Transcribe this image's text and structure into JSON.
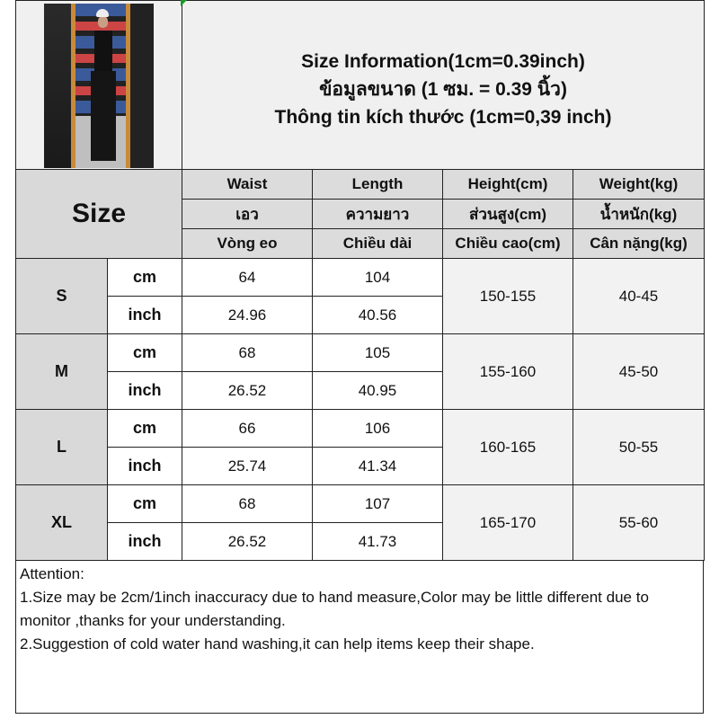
{
  "title": {
    "line1": "Size Information(1cm=0.39inch)",
    "line2": "ข้อมูลขนาด (1 ซม. = 0.39 นิ้ว)",
    "line3": "Thông tin kích thước (1cm=0,39 inch)"
  },
  "size_label": "Size",
  "headers": [
    [
      "Waist",
      "Length",
      "Height(cm)",
      "Weight(kg)"
    ],
    [
      "เอว",
      "ความยาว",
      "ส่วนสูง(cm)",
      "น้ำหนัก(kg)"
    ],
    [
      "Vòng eo",
      "Chiều dài",
      "Chiều cao(cm)",
      "Cân nặng(kg)"
    ]
  ],
  "units": {
    "cm": "cm",
    "inch": "inch"
  },
  "rows": [
    {
      "size": "S",
      "cm": {
        "waist": "64",
        "length": "104"
      },
      "inch": {
        "waist": "24.96",
        "length": "40.56"
      },
      "height": "150-155",
      "weight": "40-45"
    },
    {
      "size": "M",
      "cm": {
        "waist": "68",
        "length": "105"
      },
      "inch": {
        "waist": "26.52",
        "length": "40.95"
      },
      "height": "155-160",
      "weight": "45-50"
    },
    {
      "size": "L",
      "cm": {
        "waist": "66",
        "length": "106"
      },
      "inch": {
        "waist": "25.74",
        "length": "41.34"
      },
      "height": "160-165",
      "weight": "50-55"
    },
    {
      "size": "XL",
      "cm": {
        "waist": "68",
        "length": "107"
      },
      "inch": {
        "waist": "26.52",
        "length": "41.73"
      },
      "height": "165-170",
      "weight": "55-60"
    }
  ],
  "attention": {
    "heading": "Attention:",
    "note1": "1.Size may be 2cm/1inch inaccuracy due to hand measure,Color may be little different due to monitor ,thanks for your understanding.",
    "note2": "2.Suggestion of cold water hand washing,it can help items keep their shape."
  }
}
